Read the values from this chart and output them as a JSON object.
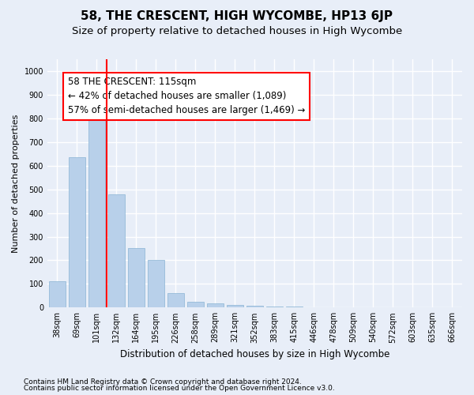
{
  "title": "58, THE CRESCENT, HIGH WYCOMBE, HP13 6JP",
  "subtitle": "Size of property relative to detached houses in High Wycombe",
  "xlabel": "Distribution of detached houses by size in High Wycombe",
  "ylabel": "Number of detached properties",
  "footnote1": "Contains HM Land Registry data © Crown copyright and database right 2024.",
  "footnote2": "Contains public sector information licensed under the Open Government Licence v3.0.",
  "bar_labels": [
    "38sqm",
    "69sqm",
    "101sqm",
    "132sqm",
    "164sqm",
    "195sqm",
    "226sqm",
    "258sqm",
    "289sqm",
    "321sqm",
    "352sqm",
    "383sqm",
    "415sqm",
    "446sqm",
    "478sqm",
    "509sqm",
    "540sqm",
    "572sqm",
    "603sqm",
    "635sqm",
    "666sqm"
  ],
  "bar_values": [
    110,
    635,
    800,
    480,
    250,
    200,
    60,
    25,
    18,
    12,
    8,
    5,
    3,
    2,
    1,
    1,
    0,
    0,
    0,
    0,
    0
  ],
  "bar_color": "#b8d0ea",
  "bar_edge_color": "#8ab4d4",
  "property_line_x": 2.5,
  "property_line_color": "red",
  "annotation_text": "58 THE CRESCENT: 115sqm\n← 42% of detached houses are smaller (1,089)\n57% of semi-detached houses are larger (1,469) →",
  "annotation_box_color": "white",
  "annotation_box_edge_color": "red",
  "ylim": [
    0,
    1050
  ],
  "yticks": [
    0,
    100,
    200,
    300,
    400,
    500,
    600,
    700,
    800,
    900,
    1000
  ],
  "background_color": "#e8eef8",
  "grid_color": "white",
  "title_fontsize": 11,
  "subtitle_fontsize": 9.5,
  "annotation_fontsize": 8.5,
  "tick_fontsize": 7,
  "ylabel_fontsize": 8,
  "xlabel_fontsize": 8.5,
  "footnote_fontsize": 6.5
}
